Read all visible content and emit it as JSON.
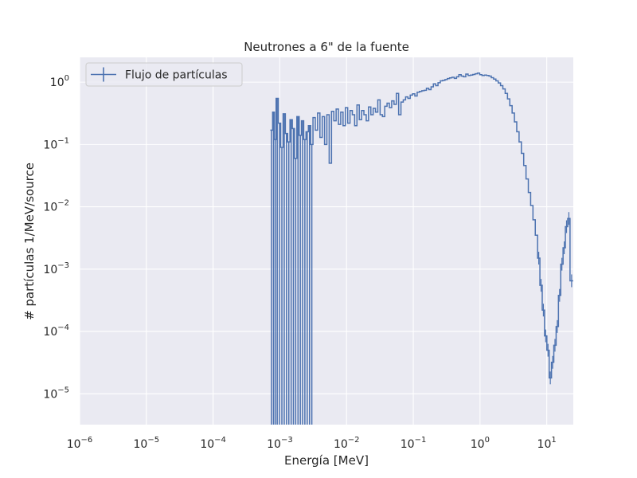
{
  "chart_data": {
    "type": "line",
    "title": "Neutrones a 6\" de la fuente",
    "xlabel": "Energía [MeV]",
    "ylabel": "# partículas 1/MeV/source",
    "x_scale": "log",
    "y_scale": "log",
    "xlim": [
      1e-06,
      25
    ],
    "ylim": [
      3.2e-06,
      2.5
    ],
    "x_ticks": [
      {
        "base": "10",
        "exp": "−6",
        "value": 1e-06
      },
      {
        "base": "10",
        "exp": "−5",
        "value": 1e-05
      },
      {
        "base": "10",
        "exp": "−4",
        "value": 0.0001
      },
      {
        "base": "10",
        "exp": "−3",
        "value": 0.001
      },
      {
        "base": "10",
        "exp": "−2",
        "value": 0.01
      },
      {
        "base": "10",
        "exp": "−1",
        "value": 0.1
      },
      {
        "base": "10",
        "exp": "0",
        "value": 1
      },
      {
        "base": "10",
        "exp": "1",
        "value": 10
      }
    ],
    "y_ticks": [
      {
        "base": "10",
        "exp": "0",
        "value": 1
      },
      {
        "base": "10",
        "exp": "−1",
        "value": 0.1
      },
      {
        "base": "10",
        "exp": "−2",
        "value": 0.01
      },
      {
        "base": "10",
        "exp": "−3",
        "value": 0.001
      },
      {
        "base": "10",
        "exp": "−4",
        "value": 0.0001
      },
      {
        "base": "10",
        "exp": "−5",
        "value": 1e-05
      }
    ],
    "grid": true,
    "legend_position": "top-left",
    "series": [
      {
        "name": "Flujo de partículas",
        "color": "#4c72b0",
        "step": true,
        "points": [
          [
            0.00072,
            0.17
          ],
          [
            0.00078,
            0.33
          ],
          [
            0.00083,
            0.12
          ],
          [
            0.00088,
            0.55
          ],
          [
            0.00095,
            0.22
          ],
          [
            0.00103,
            0.09
          ],
          [
            0.00112,
            0.31
          ],
          [
            0.00121,
            0.15
          ],
          [
            0.00131,
            0.11
          ],
          [
            0.00142,
            0.25
          ],
          [
            0.00154,
            0.18
          ],
          [
            0.00166,
            0.06
          ],
          [
            0.0018,
            0.28
          ],
          [
            0.00195,
            0.14
          ],
          [
            0.00211,
            0.24
          ],
          [
            0.00228,
            0.12
          ],
          [
            0.00247,
            0.16
          ],
          [
            0.00268,
            0.2
          ],
          [
            0.0029,
            0.1
          ],
          [
            0.00314,
            0.27
          ],
          [
            0.0034,
            0.17
          ],
          [
            0.00368,
            0.32
          ],
          [
            0.00399,
            0.13
          ],
          [
            0.00432,
            0.28
          ],
          [
            0.00468,
            0.1
          ],
          [
            0.00507,
            0.3
          ],
          [
            0.00549,
            0.05
          ],
          [
            0.00595,
            0.34
          ],
          [
            0.00644,
            0.24
          ],
          [
            0.00698,
            0.37
          ],
          [
            0.00756,
            0.21
          ],
          [
            0.00818,
            0.33
          ],
          [
            0.00886,
            0.2
          ],
          [
            0.0096,
            0.39
          ],
          [
            0.0104,
            0.22
          ],
          [
            0.01127,
            0.35
          ],
          [
            0.0122,
            0.3
          ],
          [
            0.01322,
            0.2
          ],
          [
            0.01432,
            0.43
          ],
          [
            0.01551,
            0.25
          ],
          [
            0.0168,
            0.35
          ],
          [
            0.0182,
            0.3
          ],
          [
            0.01971,
            0.24
          ],
          [
            0.02135,
            0.4
          ],
          [
            0.02313,
            0.3
          ],
          [
            0.02505,
            0.38
          ],
          [
            0.02714,
            0.33
          ],
          [
            0.02939,
            0.52
          ],
          [
            0.03184,
            0.3
          ],
          [
            0.03449,
            0.28
          ],
          [
            0.03735,
            0.41
          ],
          [
            0.04046,
            0.46
          ],
          [
            0.04383,
            0.39
          ],
          [
            0.04747,
            0.5
          ],
          [
            0.05142,
            0.44
          ],
          [
            0.0557,
            0.66
          ],
          [
            0.06033,
            0.3
          ],
          [
            0.06535,
            0.48
          ],
          [
            0.07079,
            0.52
          ],
          [
            0.07668,
            0.58
          ],
          [
            0.08305,
            0.55
          ],
          [
            0.08996,
            0.62
          ],
          [
            0.09745,
            0.65
          ],
          [
            0.10556,
            0.6
          ],
          [
            0.11434,
            0.69
          ],
          [
            0.12385,
            0.71
          ],
          [
            0.13416,
            0.73
          ],
          [
            0.14532,
            0.74
          ],
          [
            0.15741,
            0.8
          ],
          [
            0.1705,
            0.76
          ],
          [
            0.18469,
            0.84
          ],
          [
            0.20005,
            0.94
          ],
          [
            0.2167,
            0.88
          ],
          [
            0.23472,
            0.98
          ],
          [
            0.25425,
            1.05
          ],
          [
            0.2754,
            1.07
          ],
          [
            0.29831,
            1.1
          ],
          [
            0.32313,
            1.14
          ],
          [
            0.35001,
            1.17
          ],
          [
            0.37913,
            1.2
          ],
          [
            0.41067,
            1.15
          ],
          [
            0.44483,
            1.22
          ],
          [
            0.48184,
            1.32
          ],
          [
            0.52192,
            1.25
          ],
          [
            0.56534,
            1.22
          ],
          [
            0.61237,
            1.35
          ],
          [
            0.66331,
            1.28
          ],
          [
            0.7185,
            1.3
          ],
          [
            0.77827,
            1.33
          ],
          [
            0.84302,
            1.36
          ],
          [
            0.91315,
            1.4
          ],
          [
            0.98912,
            1.32
          ],
          [
            1.0714,
            1.28
          ],
          [
            1.16054,
            1.3
          ],
          [
            1.25708,
            1.28
          ],
          [
            1.36166,
            1.25
          ],
          [
            1.47494,
            1.18
          ],
          [
            1.59764,
            1.12
          ],
          [
            1.73055,
            1.05
          ],
          [
            1.87452,
            0.97
          ],
          [
            2.03046,
            0.88
          ],
          [
            2.19938,
            0.78
          ],
          [
            2.38235,
            0.66
          ],
          [
            2.58054,
            0.54
          ],
          [
            2.79522,
            0.42
          ],
          [
            3.02776,
            0.32
          ],
          [
            3.27965,
            0.23
          ],
          [
            3.55249,
            0.16
          ],
          [
            3.84802,
            0.11
          ],
          [
            4.16814,
            0.072
          ],
          [
            4.5149,
            0.046
          ],
          [
            4.8905,
            0.028
          ],
          [
            5.29735,
            0.017
          ],
          [
            5.73804,
            0.0105
          ],
          [
            6.2154,
            0.0062
          ],
          [
            6.73247,
            0.0035
          ],
          [
            7.29256,
            0.0015
          ],
          [
            7.89925,
            0.00055
          ],
          [
            8.55641,
            0.00022
          ],
          [
            9.26824,
            8.5e-05
          ],
          [
            10.0393,
            5e-05
          ],
          [
            10.8745,
            1.8e-05
          ],
          [
            11.7791,
            3.2e-05
          ],
          [
            12.7591,
            6e-05
          ],
          [
            13.8205,
            0.00012
          ],
          [
            14.9703,
            0.00038
          ],
          [
            16.2157,
            0.0012
          ],
          [
            17.5647,
            0.0022
          ],
          [
            19.0259,
            0.0048
          ],
          [
            20.6088,
            0.0065
          ],
          [
            22.3232,
            0.00065
          ]
        ]
      }
    ]
  }
}
